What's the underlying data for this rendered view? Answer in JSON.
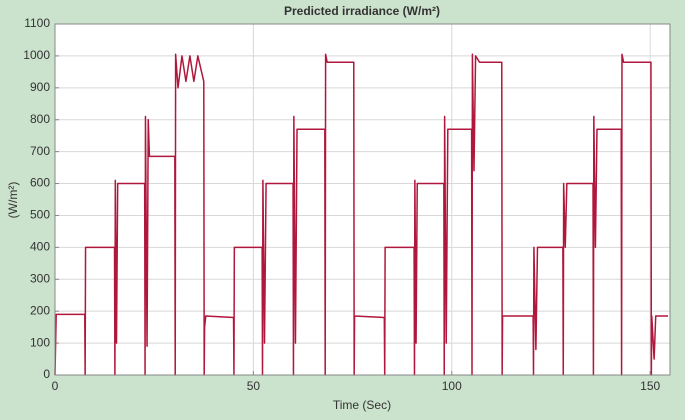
{
  "chart_data": {
    "type": "line",
    "title": "Predicted irradiance (W/m²)",
    "x_label": "Time (Sec)",
    "y_label": "(W/m²)",
    "x": [
      0,
      0.3,
      7.5,
      7.6,
      7.7,
      15,
      15.1,
      15.2,
      15.5,
      15.8,
      22.6,
      22.7,
      22.8,
      23.2,
      23.5,
      23.8,
      30.2,
      30.3,
      30.4,
      31,
      32,
      33,
      34,
      35,
      36,
      37.5,
      37.6,
      37.7,
      38,
      45,
      45.1,
      45.2,
      52.2,
      52.3,
      52.4,
      52.8,
      53.2,
      60,
      60.1,
      60.2,
      60.6,
      61,
      68,
      68.1,
      68.2,
      68.6,
      75.3,
      75.4,
      75.5,
      83,
      83.1,
      83.2,
      90.5,
      90.6,
      90.7,
      91,
      91.3,
      98,
      98.1,
      98.2,
      98.6,
      99,
      105,
      105.1,
      105.2,
      105.6,
      106,
      107,
      112.6,
      112.7,
      112.8,
      120.5,
      120.6,
      120.7,
      121.2,
      121.6,
      128,
      128.1,
      128.2,
      128.6,
      129,
      135.6,
      135.7,
      135.8,
      136.2,
      136.6,
      142.7,
      142.8,
      142.9,
      143.3,
      150.2,
      150.3,
      150.4,
      151,
      151.4,
      154.5
    ],
    "values": [
      0,
      190,
      190,
      0,
      400,
      400,
      0,
      610,
      100,
      600,
      600,
      0,
      810,
      90,
      800,
      685,
      685,
      0,
      1005,
      900,
      1000,
      920,
      1000,
      920,
      1000,
      920,
      0,
      150,
      185,
      180,
      0,
      400,
      400,
      0,
      610,
      100,
      600,
      600,
      0,
      810,
      100,
      770,
      770,
      0,
      1005,
      980,
      980,
      0,
      185,
      180,
      0,
      400,
      400,
      0,
      610,
      100,
      600,
      600,
      0,
      810,
      100,
      770,
      770,
      0,
      1005,
      640,
      1000,
      980,
      980,
      0,
      185,
      185,
      0,
      400,
      80,
      400,
      400,
      0,
      600,
      400,
      600,
      600,
      0,
      810,
      400,
      770,
      770,
      0,
      1005,
      980,
      980,
      0,
      185,
      50,
      185,
      185
    ],
    "color": "#b0173c",
    "xlim": [
      0,
      155
    ],
    "xticks": [
      0,
      50,
      100,
      150
    ],
    "ylim": [
      0,
      1100
    ],
    "yticks": [
      0,
      100,
      200,
      300,
      400,
      500,
      600,
      700,
      800,
      900,
      1000,
      1100
    ],
    "grid": true
  }
}
